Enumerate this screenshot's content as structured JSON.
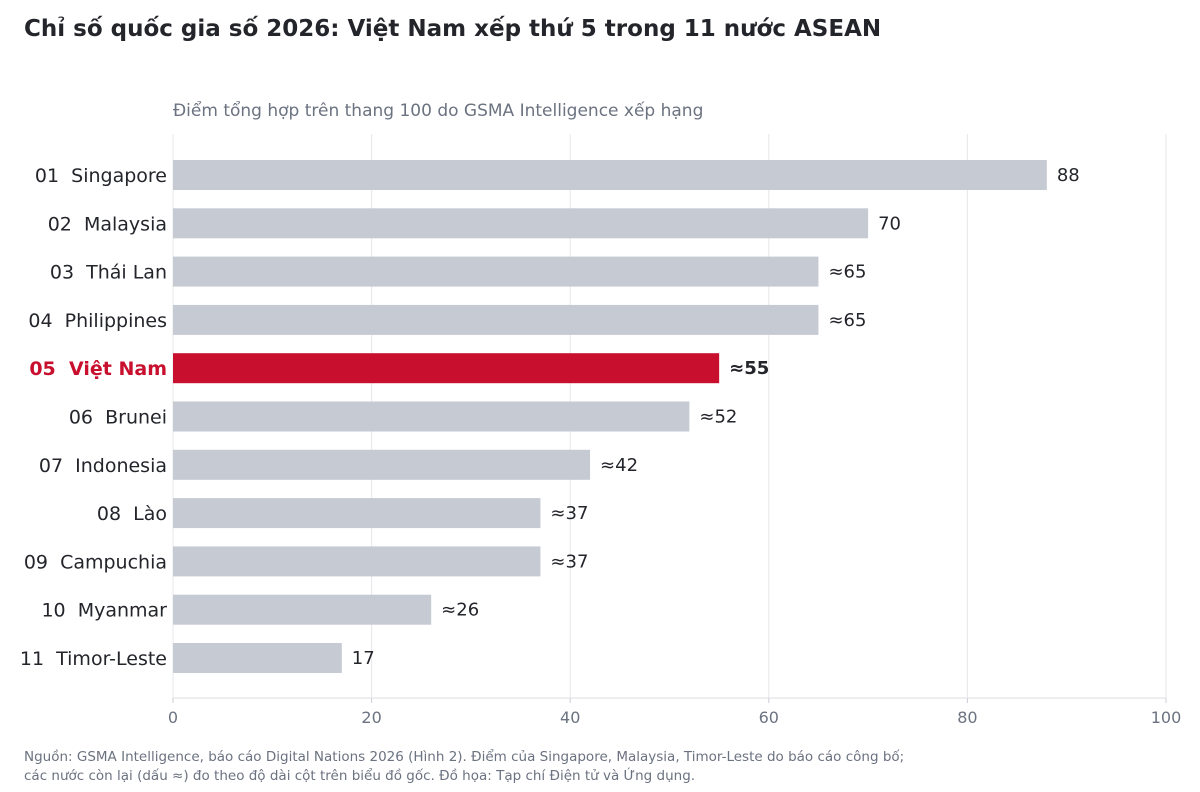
{
  "title": "Chỉ số quốc gia số 2026: Việt Nam xếp thứ 5 trong 11 nước ASEAN",
  "subtitle": "Điểm tổng hợp trên thang 100 do GSMA Intelligence xếp hạng",
  "footer": {
    "line1": "Nguồn: GSMA Intelligence, báo cáo Digital Nations 2026 (Hình 2). Điểm của Singapore, Malaysia, Timor-Leste do báo cáo công bố;",
    "line2": "các nước còn lại (dấu ≈) đo theo độ dài cột trên biểu đồ gốc. Đồ họa: Tạp chí Điện tử và Ứng dụng."
  },
  "colors": {
    "bar_default": "#c6cad3",
    "bar_highlight": "#c8102e",
    "label_text": "#23252b",
    "highlight_text": "#c8102e",
    "axis_text": "#6b7280",
    "grid": "#e6e7ea"
  },
  "chart_data": {
    "type": "bar",
    "orientation": "horizontal",
    "xlim": [
      0,
      100
    ],
    "xticks": [
      0,
      20,
      40,
      60,
      80,
      100
    ],
    "grid": true,
    "highlight_index": 4,
    "categories": [
      "01  Singapore",
      "02  Malaysia",
      "03  Thái Lan",
      "04  Philippines",
      "05  Việt Nam",
      "06  Brunei",
      "07  Indonesia",
      "08  Lào",
      "09  Campuchia",
      "10  Myanmar",
      "11  Timor-Leste"
    ],
    "values": [
      88,
      70,
      65,
      65,
      55,
      52,
      42,
      37,
      37,
      26,
      17
    ],
    "value_labels": [
      "88",
      "70",
      "≈65",
      "≈65",
      "≈55",
      "≈52",
      "≈42",
      "≈37",
      "≈37",
      "≈26",
      "17"
    ]
  }
}
